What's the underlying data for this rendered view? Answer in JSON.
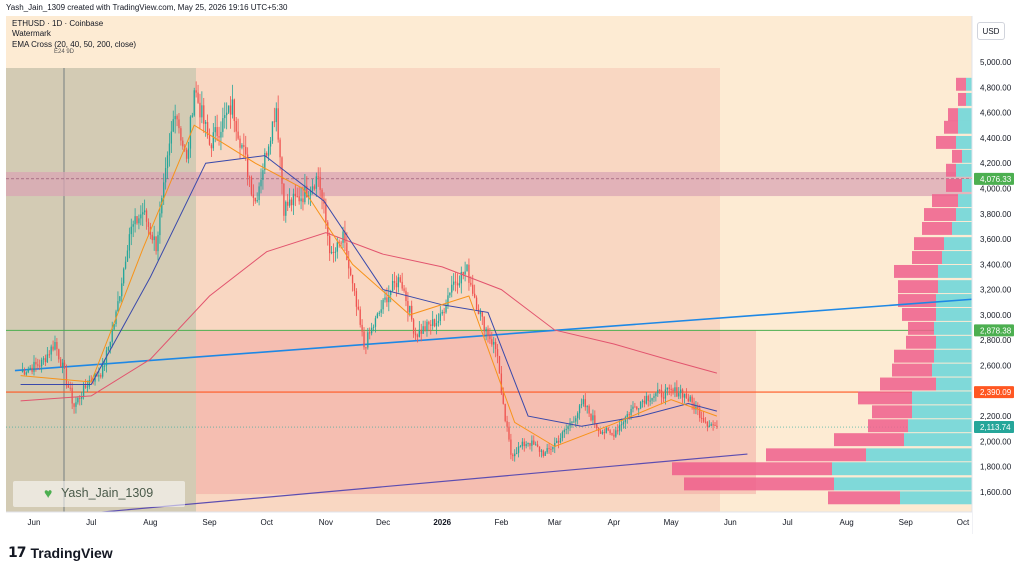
{
  "header": {
    "text": "Yash_Jain_1309 created with TradingView.com, May 25, 2026 19:16 UTC+5:30"
  },
  "legend": {
    "symbol": "ETHUSD · 1D · Coinbase",
    "watermark_label": "Watermark",
    "indicator": "EMA Cross (20, 40, 50, 200, close)",
    "sub_note": "E24 9D"
  },
  "currency_button": "USD",
  "watermark": "Yash_Jain_1309",
  "footer": {
    "brand": "TradingView",
    "logo_glyph": "17"
  },
  "colors": {
    "up": "#26a69a",
    "down": "#ef5350",
    "ema_fast": "#f7931a",
    "ema_mid": "#3949ab",
    "ema_slow": "#e2546e",
    "trend_line": "#1e88e5",
    "support_line": "#5c4db1",
    "hline_green": "#4caf50",
    "hline_orange": "#ff5722",
    "zone": "#d9a6b4",
    "vp_pink": "#ef5f8c",
    "vp_teal": "#7fd9d9"
  },
  "chart_data": {
    "type": "candlestick",
    "symbol": "ETHUSD",
    "interval": "1D",
    "exchange": "Coinbase",
    "y_axis": {
      "min": 1400,
      "max": 5050,
      "ticks": [
        "1,600.00",
        "1,800.00",
        "2,000.00",
        "2,200.00",
        "2,400.00",
        "2,600.00",
        "2,800.00",
        "3,000.00",
        "3,200.00",
        "3,400.00",
        "3,600.00",
        "3,800.00",
        "4,000.00",
        "4,200.00",
        "4,400.00",
        "4,600.00",
        "4,800.00",
        "5,000.00"
      ]
    },
    "x_axis": {
      "ticks": [
        "Jun",
        "Jul",
        "Aug",
        "Sep",
        "Oct",
        "Nov",
        "Dec",
        "2026",
        "Feb",
        "Mar",
        "Apr",
        "May",
        "Jun",
        "Jul",
        "Aug",
        "Sep",
        "Oct"
      ]
    },
    "price_labels": [
      {
        "value": 4076.33,
        "text": "4,076.33",
        "color": "#4caf50"
      },
      {
        "value": 2878.38,
        "text": "2,878.38",
        "color": "#4caf50"
      },
      {
        "value": 2390.09,
        "text": "2,390.09",
        "color": "#ff5722"
      },
      {
        "value": 2113.74,
        "text": "2,113.74",
        "color": "#26a69a"
      }
    ],
    "anchors": [
      [
        "2025-05-25",
        2550
      ],
      [
        "2025-06-05",
        2620
      ],
      [
        "2025-06-12",
        2780
      ],
      [
        "2025-06-22",
        2280
      ],
      [
        "2025-06-30",
        2480
      ],
      [
        "2025-07-07",
        2560
      ],
      [
        "2025-07-14",
        3000
      ],
      [
        "2025-07-21",
        3650
      ],
      [
        "2025-07-28",
        3820
      ],
      [
        "2025-08-04",
        3550
      ],
      [
        "2025-08-09",
        4100
      ],
      [
        "2025-08-14",
        4650
      ],
      [
        "2025-08-20",
        4200
      ],
      [
        "2025-08-24",
        4800
      ],
      [
        "2025-09-01",
        4350
      ],
      [
        "2025-09-13",
        4650
      ],
      [
        "2025-09-25",
        3900
      ],
      [
        "2025-10-06",
        4650
      ],
      [
        "2025-10-10",
        3850
      ],
      [
        "2025-10-20",
        3950
      ],
      [
        "2025-10-28",
        4100
      ],
      [
        "2025-11-04",
        3450
      ],
      [
        "2025-11-10",
        3600
      ],
      [
        "2025-11-21",
        2750
      ],
      [
        "2025-12-03",
        3150
      ],
      [
        "2025-12-10",
        3300
      ],
      [
        "2025-12-18",
        2850
      ],
      [
        "2025-12-31",
        2970
      ],
      [
        "2026-01-06",
        3250
      ],
      [
        "2026-01-14",
        3350
      ],
      [
        "2026-01-22",
        2950
      ],
      [
        "2026-01-30",
        2700
      ],
      [
        "2026-02-01",
        2350
      ],
      [
        "2026-02-06",
        1900
      ],
      [
        "2026-02-15",
        2000
      ],
      [
        "2026-02-24",
        1900
      ],
      [
        "2026-03-05",
        2050
      ],
      [
        "2026-03-16",
        2300
      ],
      [
        "2026-03-24",
        2100
      ],
      [
        "2026-03-31",
        2050
      ],
      [
        "2026-04-10",
        2250
      ],
      [
        "2026-04-18",
        2350
      ],
      [
        "2026-04-27",
        2380
      ],
      [
        "2026-05-06",
        2400
      ],
      [
        "2026-05-12",
        2300
      ],
      [
        "2026-05-20",
        2150
      ],
      [
        "2026-05-25",
        2114
      ]
    ],
    "ema_fast_pts": [
      [
        "2025-05-25",
        2520
      ],
      [
        "2025-07-01",
        2470
      ],
      [
        "2025-07-28",
        3520
      ],
      [
        "2025-08-24",
        4500
      ],
      [
        "2025-09-25",
        4200
      ],
      [
        "2025-10-20",
        4000
      ],
      [
        "2025-11-15",
        3400
      ],
      [
        "2025-12-15",
        3000
      ],
      [
        "2026-01-15",
        3150
      ],
      [
        "2026-02-08",
        2150
      ],
      [
        "2026-03-01",
        1960
      ],
      [
        "2026-04-01",
        2140
      ],
      [
        "2026-05-01",
        2330
      ],
      [
        "2026-05-25",
        2200
      ]
    ],
    "ema_mid_pts": [
      [
        "2025-05-25",
        2450
      ],
      [
        "2025-07-01",
        2450
      ],
      [
        "2025-08-01",
        3300
      ],
      [
        "2025-08-30",
        4200
      ],
      [
        "2025-09-30",
        4260
      ],
      [
        "2025-10-31",
        3900
      ],
      [
        "2025-12-01",
        3200
      ],
      [
        "2026-01-01",
        3080
      ],
      [
        "2026-01-25",
        3020
      ],
      [
        "2026-02-15",
        2200
      ],
      [
        "2026-03-15",
        2120
      ],
      [
        "2026-04-15",
        2200
      ],
      [
        "2026-05-10",
        2300
      ],
      [
        "2026-05-25",
        2240
      ]
    ],
    "ema_slow_pts": [
      [
        "2025-05-25",
        2320
      ],
      [
        "2025-07-01",
        2360
      ],
      [
        "2025-08-01",
        2650
      ],
      [
        "2025-09-01",
        3150
      ],
      [
        "2025-10-01",
        3500
      ],
      [
        "2025-11-01",
        3650
      ],
      [
        "2025-12-01",
        3480
      ],
      [
        "2026-01-01",
        3380
      ],
      [
        "2026-02-01",
        3200
      ],
      [
        "2026-03-01",
        2880
      ],
      [
        "2026-04-01",
        2770
      ],
      [
        "2026-05-01",
        2640
      ],
      [
        "2026-05-25",
        2540
      ]
    ],
    "lines": {
      "upper_trend": {
        "from": [
          "2025-05-22",
          2560
        ],
        "to": [
          "2026-10-20",
          3140
        ]
      },
      "lower_support": {
        "from": [
          "2025-05-22",
          1380
        ],
        "to": [
          "2026-06-10",
          1900
        ]
      }
    },
    "hlines": {
      "green_upper": 4076.33,
      "green_lower": 2878.38,
      "orange": 2390.09,
      "current": 2113.74
    },
    "zone": {
      "top": 4130,
      "bottom": 3940
    },
    "volume_profile": [
      {
        "price": 4820,
        "pink": 10,
        "teal": 6
      },
      {
        "price": 4700,
        "pink": 8,
        "teal": 6
      },
      {
        "price": 4580,
        "pink": 10,
        "teal": 14
      },
      {
        "price": 4480,
        "pink": 14,
        "teal": 14
      },
      {
        "price": 4360,
        "pink": 20,
        "teal": 16
      },
      {
        "price": 4250,
        "pink": 10,
        "teal": 10
      },
      {
        "price": 4140,
        "pink": 10,
        "teal": 16
      },
      {
        "price": 4020,
        "pink": 16,
        "teal": 10
      },
      {
        "price": 3900,
        "pink": 26,
        "teal": 14
      },
      {
        "price": 3790,
        "pink": 32,
        "teal": 16
      },
      {
        "price": 3680,
        "pink": 30,
        "teal": 20
      },
      {
        "price": 3560,
        "pink": 30,
        "teal": 28
      },
      {
        "price": 3450,
        "pink": 30,
        "teal": 30
      },
      {
        "price": 3340,
        "pink": 44,
        "teal": 34
      },
      {
        "price": 3220,
        "pink": 40,
        "teal": 34
      },
      {
        "price": 3110,
        "pink": 38,
        "teal": 36
      },
      {
        "price": 3000,
        "pink": 34,
        "teal": 36
      },
      {
        "price": 2890,
        "pink": 26,
        "teal": 38
      },
      {
        "price": 2780,
        "pink": 30,
        "teal": 36
      },
      {
        "price": 2670,
        "pink": 40,
        "teal": 38
      },
      {
        "price": 2560,
        "pink": 40,
        "teal": 40
      },
      {
        "price": 2450,
        "pink": 56,
        "teal": 36
      },
      {
        "price": 2340,
        "pink": 54,
        "teal": 60
      },
      {
        "price": 2230,
        "pink": 40,
        "teal": 60
      },
      {
        "price": 2120,
        "pink": 40,
        "teal": 64
      },
      {
        "price": 2010,
        "pink": 70,
        "teal": 68
      },
      {
        "price": 1890,
        "pink": 100,
        "teal": 106
      },
      {
        "price": 1780,
        "pink": 160,
        "teal": 140
      },
      {
        "price": 1660,
        "pink": 150,
        "teal": 138
      },
      {
        "price": 1550,
        "pink": 72,
        "teal": 72
      }
    ]
  }
}
